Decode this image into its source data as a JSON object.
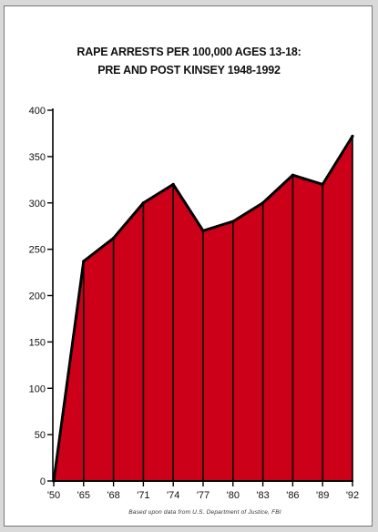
{
  "chart_data": {
    "type": "area",
    "title_line1": "RAPE ARRESTS PER 100,000 AGES 13-18:",
    "title_line2": "PRE AND POST KINSEY 1948-1992",
    "categories": [
      "'50",
      "'65",
      "'68",
      "'71",
      "'74",
      "'77",
      "'80",
      "'83",
      "'86",
      "'89",
      "'92"
    ],
    "values": [
      0,
      237,
      262,
      300,
      320,
      270,
      280,
      300,
      330,
      320,
      372
    ],
    "ylim": [
      0,
      400
    ],
    "yticks": [
      0,
      50,
      100,
      150,
      200,
      250,
      300,
      350,
      400
    ],
    "xlabel": "",
    "ylabel": "",
    "source_note": "Based upon data from U.S. Department of Justice, FBI",
    "grid": false,
    "fill_color": "#cc0018",
    "line_color": "#000000"
  }
}
